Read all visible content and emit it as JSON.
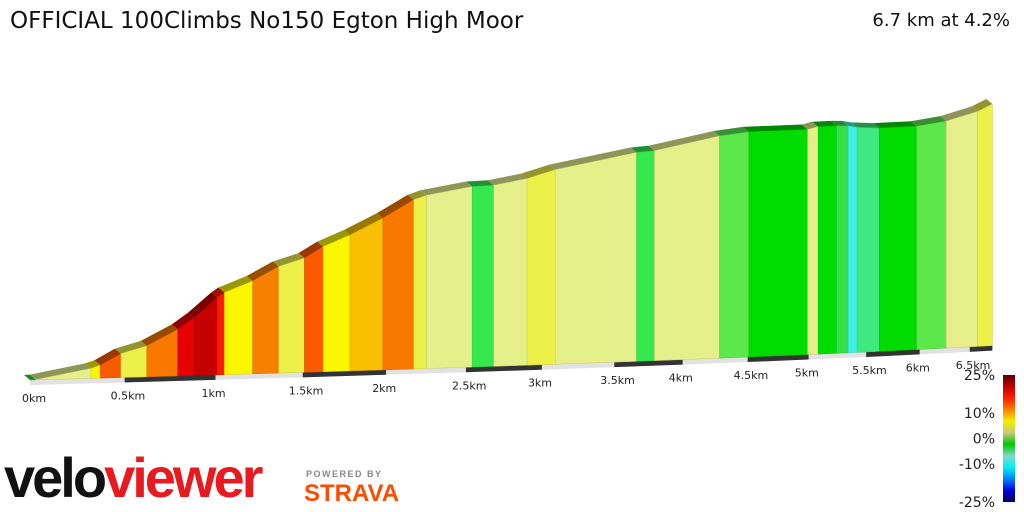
{
  "header": {
    "title": "OFFICIAL 100Climbs No150 Egton High Moor",
    "summary": "6.7 km at 4.2%"
  },
  "branding": {
    "logo_part1": "velo",
    "logo_part2": "viewer",
    "powered_by": "POWERED BY",
    "strava": "STRAVA"
  },
  "chart_data": {
    "type": "area",
    "title": "OFFICIAL 100Climbs No150 Egton High Moor",
    "xlabel": "",
    "ylabel": "",
    "x_unit": "km",
    "xlim": [
      0,
      6.74
    ],
    "x_ticks": [
      "0km",
      "0.5km",
      "1km",
      "1.5km",
      "2km",
      "2.5km",
      "3km",
      "3.5km",
      "4km",
      "4.5km",
      "5km",
      "5.5km",
      "6km",
      "6.5km"
    ],
    "x_tick_values": [
      0,
      0.5,
      1,
      1.5,
      2,
      2.5,
      3,
      3.5,
      4,
      4.5,
      5,
      5.5,
      6,
      6.5
    ],
    "total_distance_km": 6.7,
    "average_gradient_pct": 4.2,
    "segments": [
      {
        "from_km": 0,
        "to_km": 0.03,
        "gradient_pct": 1,
        "color": "#2ad83a"
      },
      {
        "from_km": 0.03,
        "to_km": 0.32,
        "gradient_pct": 4,
        "color": "#e6f08a"
      },
      {
        "from_km": 0.32,
        "to_km": 0.37,
        "gradient_pct": 7,
        "color": "#faf600"
      },
      {
        "from_km": 0.37,
        "to_km": 0.48,
        "gradient_pct": 12,
        "color": "#f85a00"
      },
      {
        "from_km": 0.48,
        "to_km": 0.62,
        "gradient_pct": 6,
        "color": "#eef04a"
      },
      {
        "from_km": 0.62,
        "to_km": 0.79,
        "gradient_pct": 11,
        "color": "#f87800"
      },
      {
        "from_km": 0.79,
        "to_km": 0.88,
        "gradient_pct": 15,
        "color": "#e80000"
      },
      {
        "from_km": 0.88,
        "to_km": 1.01,
        "gradient_pct": 18,
        "color": "#c40000"
      },
      {
        "from_km": 1.01,
        "to_km": 1.05,
        "gradient_pct": 14,
        "color": "#ff1a00"
      },
      {
        "from_km": 1.05,
        "to_km": 1.21,
        "gradient_pct": 8,
        "color": "#faf600"
      },
      {
        "from_km": 1.21,
        "to_km": 1.36,
        "gradient_pct": 11,
        "color": "#f88000"
      },
      {
        "from_km": 1.36,
        "to_km": 1.51,
        "gradient_pct": 6,
        "color": "#eef04a"
      },
      {
        "from_km": 1.51,
        "to_km": 1.62,
        "gradient_pct": 12,
        "color": "#fa5a00"
      },
      {
        "from_km": 1.62,
        "to_km": 1.78,
        "gradient_pct": 8,
        "color": "#faf600"
      },
      {
        "from_km": 1.78,
        "to_km": 1.98,
        "gradient_pct": 9.5,
        "color": "#f8c000"
      },
      {
        "from_km": 1.98,
        "to_km": 2.17,
        "gradient_pct": 11,
        "color": "#f87800"
      },
      {
        "from_km": 2.17,
        "to_km": 2.25,
        "gradient_pct": 6,
        "color": "#eef04a"
      },
      {
        "from_km": 2.25,
        "to_km": 2.54,
        "gradient_pct": 3,
        "color": "#e6f08a"
      },
      {
        "from_km": 2.54,
        "to_km": 2.68,
        "gradient_pct": 0.5,
        "color": "#35e84e"
      },
      {
        "from_km": 2.68,
        "to_km": 2.9,
        "gradient_pct": 3,
        "color": "#e6f08a"
      },
      {
        "from_km": 2.9,
        "to_km": 3.09,
        "gradient_pct": 5,
        "color": "#eef04a"
      },
      {
        "from_km": 3.09,
        "to_km": 3.66,
        "gradient_pct": 3,
        "color": "#e6f08a"
      },
      {
        "from_km": 3.66,
        "to_km": 3.79,
        "gradient_pct": 1,
        "color": "#35e84e"
      },
      {
        "from_km": 3.79,
        "to_km": 4.28,
        "gradient_pct": 3,
        "color": "#e6f08a"
      },
      {
        "from_km": 4.28,
        "to_km": 4.51,
        "gradient_pct": 1.5,
        "color": "#5ce84a"
      },
      {
        "from_km": 4.51,
        "to_km": 4.99,
        "gradient_pct": 0,
        "color": "#00dc00"
      },
      {
        "from_km": 4.99,
        "to_km": 5.08,
        "gradient_pct": 3,
        "color": "#e6f08a"
      },
      {
        "from_km": 5.08,
        "to_km": 5.24,
        "gradient_pct": 0,
        "color": "#00dc00"
      },
      {
        "from_km": 5.24,
        "to_km": 5.34,
        "gradient_pct": -0.5,
        "color": "#36e04a"
      },
      {
        "from_km": 5.34,
        "to_km": 5.42,
        "gradient_pct": -3,
        "color": "#40f0e0"
      },
      {
        "from_km": 5.42,
        "to_km": 5.62,
        "gradient_pct": -1,
        "color": "#40e880"
      },
      {
        "from_km": 5.62,
        "to_km": 5.97,
        "gradient_pct": 0,
        "color": "#00dc00"
      },
      {
        "from_km": 5.97,
        "to_km": 6.26,
        "gradient_pct": 1.5,
        "color": "#5ce84a"
      },
      {
        "from_km": 6.26,
        "to_km": 6.58,
        "gradient_pct": 3,
        "color": "#e6f08a"
      },
      {
        "from_km": 6.58,
        "to_km": 6.74,
        "gradient_pct": 5,
        "color": "#eef04a"
      }
    ],
    "legend": {
      "type": "color-scale",
      "placement": "bottom-right",
      "labels": [
        "25%",
        "10%",
        "0%",
        "-10%",
        "-25%"
      ],
      "values": [
        25,
        10,
        0,
        -10,
        -25
      ],
      "colors": [
        "#5a0000",
        "#c00000",
        "#ff2000",
        "#ff8000",
        "#f0f000",
        "#c8c878",
        "#00c800",
        "#80d8c8",
        "#00f0f0",
        "#0080ff",
        "#0000e0",
        "#000060"
      ]
    }
  }
}
